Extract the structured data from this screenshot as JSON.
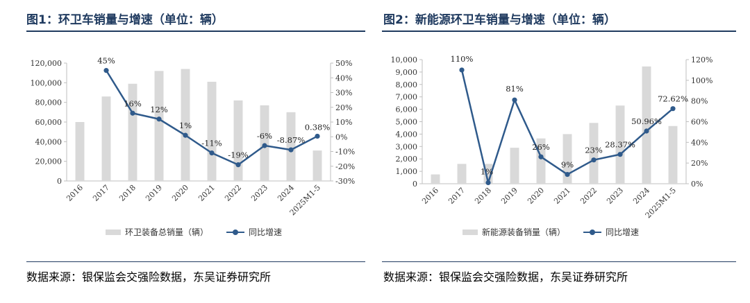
{
  "figures": [
    {
      "title": "图1：环卫车销量与增速（单位：辆）",
      "source": "数据来源：银保监会交强险数据，东吴证券研究所",
      "legend": {
        "bar_label": "环卫装备总销量（辆）",
        "line_label": "同比增速"
      }
    },
    {
      "title": "图2：新能源环卫车销量与增速（单位：辆）",
      "source": "数据来源：银保监会交强险数据，东吴证券研究所",
      "legend": {
        "bar_label": "新能源装备销量（辆）",
        "line_label": "同比增速"
      }
    }
  ],
  "chart_data": [
    {
      "type": "bar+line",
      "categories": [
        "2016",
        "2017",
        "2018",
        "2019",
        "2020",
        "2021",
        "2022",
        "2023",
        "2024",
        "2025M1-5"
      ],
      "series": [
        {
          "name": "环卫装备总销量（辆）",
          "type": "bar",
          "axis": "left",
          "values": [
            60000,
            86000,
            99000,
            112000,
            114000,
            101000,
            82000,
            77000,
            70000,
            31000
          ]
        },
        {
          "name": "同比增速",
          "type": "line",
          "axis": "right",
          "values": [
            null,
            45,
            16,
            12,
            1,
            -11,
            -19,
            -6,
            -8.87,
            0.38
          ],
          "labels": [
            "",
            "45%",
            "16%",
            "12%",
            "1%",
            "-11%",
            "-19%",
            "-6%",
            "-8.87%",
            "0.38%"
          ]
        }
      ],
      "y_left": {
        "min": 0,
        "max": 120000,
        "step": 20000,
        "ticks": [
          "0",
          "20,000",
          "40,000",
          "60,000",
          "80,000",
          "100,000",
          "120,000"
        ]
      },
      "y_right": {
        "min": -30,
        "max": 50,
        "step": 10,
        "ticks": [
          "-30%",
          "-20%",
          "-10%",
          "0%",
          "10%",
          "20%",
          "30%",
          "40%",
          "50%"
        ]
      },
      "grid": false,
      "legend_position": "bottom",
      "colors": {
        "bar": "#d9d9d9",
        "line": "#2f5a8b"
      }
    },
    {
      "type": "bar+line",
      "categories": [
        "2016",
        "2017",
        "2018",
        "2019",
        "2020",
        "2021",
        "2022",
        "2023",
        "2024",
        "2025M1-5"
      ],
      "series": [
        {
          "name": "新能源装备销量（辆）",
          "type": "bar",
          "axis": "left",
          "values": [
            750,
            1600,
            1600,
            2900,
            3650,
            4000,
            4900,
            6300,
            9450,
            4650
          ]
        },
        {
          "name": "同比增速",
          "type": "line",
          "axis": "right",
          "values": [
            null,
            110,
            1,
            81,
            26,
            9,
            23,
            28.37,
            50.96,
            72.62
          ],
          "labels": [
            "",
            "110%",
            "1%",
            "81%",
            "26%",
            "9%",
            "23%",
            "28.37%",
            "50.96%",
            "72.62%"
          ]
        }
      ],
      "y_left": {
        "min": 0,
        "max": 10000,
        "step": 1000,
        "ticks": [
          "0",
          "1,000",
          "2,000",
          "3,000",
          "4,000",
          "5,000",
          "6,000",
          "7,000",
          "8,000",
          "9,000",
          "10,000"
        ]
      },
      "y_right": {
        "min": 0,
        "max": 120,
        "step": 20,
        "ticks": [
          "0%",
          "20%",
          "40%",
          "60%",
          "80%",
          "100%",
          "120%"
        ]
      },
      "grid": false,
      "legend_position": "bottom",
      "colors": {
        "bar": "#d9d9d9",
        "line": "#2f5a8b"
      }
    }
  ]
}
